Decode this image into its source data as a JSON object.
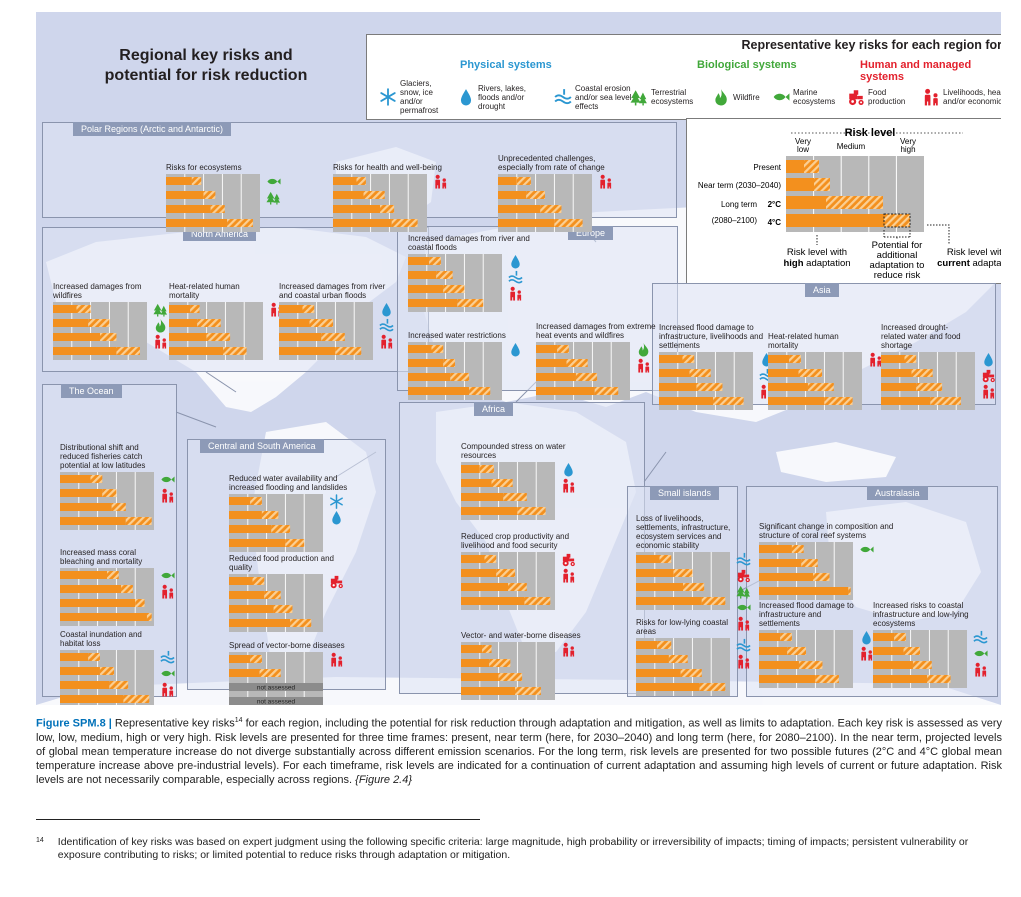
{
  "figure": {
    "title_line1": "Regional key risks and",
    "title_line2": "potential for risk reduction",
    "legend": {
      "title": "Representative key risks for each region for",
      "categories": [
        {
          "label": "Physical systems",
          "color": "#2b97d1"
        },
        {
          "label": "Biological systems",
          "color": "#41a83a"
        },
        {
          "label": "Human and managed systems",
          "color": "#e3212d"
        }
      ],
      "items": [
        {
          "icon": "snowflake",
          "label_lines": [
            "Glaciers,",
            "snow, ice",
            "and/or",
            "permafrost"
          ]
        },
        {
          "icon": "drop",
          "label_lines": [
            "Rivers, lakes,",
            "floods and/or",
            "drought"
          ]
        },
        {
          "icon": "wave",
          "label_lines": [
            "Coastal erosion",
            "and/or sea level",
            "effects"
          ]
        },
        {
          "icon": "tree",
          "label_lines": [
            "Terrestrial",
            "ecosystems"
          ]
        },
        {
          "icon": "flame",
          "label_lines": [
            "Wildfire"
          ]
        },
        {
          "icon": "fish",
          "label_lines": [
            "Marine",
            "ecosystems"
          ]
        },
        {
          "icon": "tractor",
          "label_lines": [
            "Food",
            "production"
          ]
        },
        {
          "icon": "people",
          "label_lines": [
            "Livelihoods, health",
            "and/or economics"
          ]
        }
      ]
    },
    "risk_level": {
      "title": "Risk level",
      "scale": {
        "very_low": [
          "Very",
          "low"
        ],
        "medium": "Medium",
        "very_high": [
          "Very",
          "high"
        ]
      },
      "rows": {
        "present": "Present",
        "near": "Near term (2030–2040)",
        "long1": "Long term",
        "long2": "(2080–2100)",
        "deg2": "2°C",
        "deg4": "4°C"
      },
      "notes": {
        "high1": "Risk level with",
        "high2_bold": "high",
        "high2": " adaptation",
        "pot1": "Potential for",
        "pot2": "additional",
        "pot3": "adaptation to",
        "pot4": "reduce risk",
        "cur1": "Risk level with",
        "cur2_bold": "current",
        "cur2": " adaptation"
      }
    },
    "regions": [
      {
        "id": "polar",
        "title": "Polar Regions (Arctic and Antarctic)"
      },
      {
        "id": "north_america",
        "title": "North America"
      },
      {
        "id": "europe",
        "title": "Europe"
      },
      {
        "id": "asia",
        "title": "Asia"
      },
      {
        "id": "ocean",
        "title": "The Ocean"
      },
      {
        "id": "csa",
        "title": "Central and South America"
      },
      {
        "id": "africa",
        "title": "Africa"
      },
      {
        "id": "small_islands",
        "title": "Small islands"
      },
      {
        "id": "australasia",
        "title": "Australasia"
      }
    ],
    "not_assessed": "not assessed"
  },
  "chart_data": {
    "type": "bar",
    "title": "Regional key risks and potential for risk reduction",
    "scale": {
      "levels": [
        "Very low",
        "Low",
        "Medium",
        "High",
        "Very high"
      ],
      "range": [
        0,
        4
      ]
    },
    "bar_order": [
      "Present",
      "Near term (2030–2040)",
      "Long term 2°C (2080–2100)",
      "Long term 4°C (2080–2100)"
    ],
    "value_format": "[risk level with high adaptation, risk level with current adaptation]",
    "risks": [
      {
        "region": "Polar Regions (Arctic and Antarctic)",
        "label": "Risks for ecosystems",
        "icons": [
          "fish",
          "tree"
        ],
        "bars": [
          [
            1.1,
            1.5
          ],
          [
            1.6,
            2.1
          ],
          [
            1.9,
            2.5
          ],
          [
            2.6,
            3.7
          ]
        ]
      },
      {
        "region": "Polar Regions (Arctic and Antarctic)",
        "label": "Risks for health and well-being",
        "icons": [
          "people"
        ],
        "bars": [
          [
            1.0,
            1.4
          ],
          [
            1.3,
            2.2
          ],
          [
            2.0,
            2.6
          ],
          [
            2.5,
            3.6
          ]
        ]
      },
      {
        "region": "Polar Regions (Arctic and Antarctic)",
        "label": "Unprecedented challenges, especially from rate of change",
        "icons": [
          "people"
        ],
        "bars": [
          [
            0.8,
            1.4
          ],
          [
            1.2,
            2.0
          ],
          [
            1.8,
            2.7
          ],
          [
            2.4,
            3.6
          ]
        ]
      },
      {
        "region": "North America",
        "label": "Increased damages from wildfires",
        "icons": [
          "tree",
          "flame",
          "people"
        ],
        "bars": [
          [
            1.0,
            1.6
          ],
          [
            1.5,
            2.4
          ],
          [
            2.0,
            2.7
          ],
          [
            2.7,
            3.7
          ]
        ]
      },
      {
        "region": "North America",
        "label": "Heat-related human mortality",
        "icons": [
          "people"
        ],
        "bars": [
          [
            0.9,
            1.3
          ],
          [
            1.2,
            2.2
          ],
          [
            1.6,
            2.6
          ],
          [
            2.3,
            3.3
          ]
        ]
      },
      {
        "region": "North America",
        "label": "Increased damages from river and coastal urban floods",
        "icons": [
          "drop",
          "wave",
          "people"
        ],
        "bars": [
          [
            1.0,
            1.5
          ],
          [
            1.3,
            2.3
          ],
          [
            1.8,
            2.8
          ],
          [
            2.4,
            3.5
          ]
        ]
      },
      {
        "region": "Europe",
        "label": "Increased damages from river and coastal floods",
        "icons": [
          "drop",
          "wave",
          "people"
        ],
        "bars": [
          [
            0.9,
            1.4
          ],
          [
            1.2,
            1.9
          ],
          [
            1.5,
            2.4
          ],
          [
            2.1,
            3.2
          ]
        ]
      },
      {
        "region": "Europe",
        "label": "Increased water restrictions",
        "icons": [
          "drop"
        ],
        "bars": [
          [
            1.0,
            1.5
          ],
          [
            1.5,
            2.0
          ],
          [
            1.8,
            2.6
          ],
          [
            2.6,
            3.5
          ]
        ]
      },
      {
        "region": "Europe",
        "label": "Increased damages from extreme heat events and wildfires",
        "icons": [
          "flame",
          "people"
        ],
        "bars": [
          [
            0.9,
            1.4
          ],
          [
            1.3,
            2.2
          ],
          [
            1.7,
            2.6
          ],
          [
            2.5,
            3.5
          ]
        ]
      },
      {
        "region": "Asia",
        "label": "Increased flood damage to infrastructure, livelihoods and settlements",
        "icons": [
          "drop",
          "wave",
          "people"
        ],
        "bars": [
          [
            1.0,
            1.5
          ],
          [
            1.3,
            2.2
          ],
          [
            1.6,
            2.7
          ],
          [
            2.3,
            3.6
          ]
        ]
      },
      {
        "region": "Asia",
        "label": "Heat-related human mortality",
        "icons": [
          "people"
        ],
        "bars": [
          [
            0.9,
            1.4
          ],
          [
            1.3,
            2.3
          ],
          [
            1.7,
            2.8
          ],
          [
            2.4,
            3.6
          ]
        ]
      },
      {
        "region": "Asia",
        "label": "Increased drought-related water and food shortage",
        "icons": [
          "drop",
          "tractor",
          "people"
        ],
        "bars": [
          [
            1.0,
            1.5
          ],
          [
            1.3,
            2.2
          ],
          [
            1.5,
            2.6
          ],
          [
            2.1,
            3.4
          ]
        ]
      },
      {
        "region": "The Ocean",
        "label": "Distributional shift and reduced fisheries catch potential at low latitudes",
        "icons": [
          "fish",
          "people"
        ],
        "bars": [
          [
            1.3,
            1.8
          ],
          [
            1.8,
            2.4
          ],
          [
            2.2,
            2.8
          ],
          [
            2.8,
            3.9
          ]
        ]
      },
      {
        "region": "The Ocean",
        "label": "Increased mass coral bleaching and mortality",
        "icons": [
          "fish",
          "people"
        ],
        "bars": [
          [
            2.0,
            2.5
          ],
          [
            2.6,
            3.1
          ],
          [
            3.2,
            3.6
          ],
          [
            3.7,
            3.9
          ]
        ]
      },
      {
        "region": "The Ocean",
        "label": "Coastal inundation and habitat loss",
        "icons": [
          "wave",
          "fish",
          "people"
        ],
        "bars": [
          [
            1.2,
            1.7
          ],
          [
            1.7,
            2.3
          ],
          [
            2.1,
            2.9
          ],
          [
            2.7,
            3.8
          ]
        ]
      },
      {
        "region": "Central and South America",
        "label": "Reduced water availability and increased flooding and landslides",
        "icons": [
          "snowflake",
          "drop"
        ],
        "bars": [
          [
            0.9,
            1.4
          ],
          [
            1.4,
            2.1
          ],
          [
            1.8,
            2.6
          ],
          [
            2.4,
            3.2
          ]
        ]
      },
      {
        "region": "Central and South America",
        "label": "Reduced food production and quality",
        "icons": [
          "tractor"
        ],
        "bars": [
          [
            1.0,
            1.5
          ],
          [
            1.5,
            2.2
          ],
          [
            1.9,
            2.7
          ],
          [
            2.6,
            3.5
          ]
        ]
      },
      {
        "region": "Central and South America",
        "label": "Spread of vector-borne diseases",
        "icons": [
          "people"
        ],
        "bars": [
          [
            0.9,
            1.4
          ],
          [
            1.3,
            2.2
          ],
          null,
          null
        ]
      },
      {
        "region": "Africa",
        "label": "Compounded stress on water resources",
        "icons": [
          "drop",
          "people"
        ],
        "bars": [
          [
            0.8,
            1.4
          ],
          [
            1.3,
            2.2
          ],
          [
            1.8,
            2.8
          ],
          [
            2.4,
            3.6
          ]
        ]
      },
      {
        "region": "Africa",
        "label": "Reduced crop productivity and livelihood and food security",
        "icons": [
          "tractor",
          "people"
        ],
        "bars": [
          [
            1.0,
            1.5
          ],
          [
            1.5,
            2.3
          ],
          [
            2.0,
            2.8
          ],
          [
            2.7,
            3.8
          ]
        ]
      },
      {
        "region": "Africa",
        "label": "Vector- and water-borne diseases",
        "icons": [
          "people"
        ],
        "bars": [
          [
            0.9,
            1.3
          ],
          [
            1.2,
            2.1
          ],
          [
            1.6,
            2.6
          ],
          [
            2.3,
            3.4
          ]
        ]
      },
      {
        "region": "Small islands",
        "label": "Loss of livelihoods, settlements, infrastructure, ecosystem services and economic stability",
        "icons": [
          "wave",
          "tractor",
          "tree",
          "fish",
          "people"
        ],
        "bars": [
          [
            1.0,
            1.5
          ],
          [
            1.6,
            2.4
          ],
          [
            2.0,
            2.9
          ],
          [
            2.8,
            3.8
          ]
        ]
      },
      {
        "region": "Small islands",
        "label": "Risks for low-lying coastal areas",
        "icons": [
          "wave",
          "people"
        ],
        "bars": [
          [
            0.9,
            1.5
          ],
          [
            1.4,
            2.2
          ],
          [
            1.9,
            2.8
          ],
          [
            2.7,
            3.8
          ]
        ]
      },
      {
        "region": "Australasia",
        "label": "Significant change in composition and structure of coral reef systems",
        "icons": [
          "fish"
        ],
        "bars": [
          [
            1.4,
            1.9
          ],
          [
            1.8,
            2.5
          ],
          [
            2.3,
            3.0
          ],
          [
            3.8,
            3.9
          ]
        ]
      },
      {
        "region": "Australasia",
        "label": "Increased flood damage to infrastructure and settlements",
        "icons": [
          "drop",
          "people"
        ],
        "bars": [
          [
            0.9,
            1.4
          ],
          [
            1.2,
            2.0
          ],
          [
            1.7,
            2.7
          ],
          [
            2.4,
            3.4
          ]
        ]
      },
      {
        "region": "Australasia",
        "label": "Increased risks to coastal infrastructure and low-lying ecosystems",
        "icons": [
          "wave",
          "fish",
          "people"
        ],
        "bars": [
          [
            0.9,
            1.4
          ],
          [
            1.3,
            2.0
          ],
          [
            1.7,
            2.5
          ],
          [
            2.3,
            3.3
          ]
        ]
      }
    ]
  },
  "caption": {
    "fig_label": "Figure SPM.8 |",
    "text_a": " Representative key risks",
    "sup": "14",
    "text_b": " for each region, including the potential for risk reduction through adaptation and mitigation, as well as limits to adaptation. Each key risk is assessed as very low, low, medium, high or very high. Risk levels are presented for three time frames: present, near term (here, for 2030–2040) and long term (here, for 2080–2100). In the near term, projected levels of global mean temperature increase do not diverge substantially across different emission scenarios. For the long term, risk levels are presented for two possible futures (2°C and 4°C global mean temperature increase above pre-industrial levels). For each timeframe, risk levels are indicated for a continuation of current adaptation and assuming high levels of current or future adaptation. Risk levels are not necessarily comparable, especially across regions. ",
    "ref": "{Figure 2.4}"
  },
  "footnote": {
    "num": "14",
    "text": "Identification of key risks was based on expert judgment using the following specific criteria: large magnitude, high probability or irreversibility of impacts; timing of impacts; persistent vulnerability or exposure contributing to risks; or limited potential to reduce risks through adaptation or mitigation."
  },
  "colors": {
    "bar": "#f3901e",
    "hatch": "#fbcf93",
    "panel": "#b8b8b8",
    "human": "#e3212d",
    "bio": "#41a83a",
    "phys": "#2b97d1",
    "region_title": "#8d9ab7"
  }
}
